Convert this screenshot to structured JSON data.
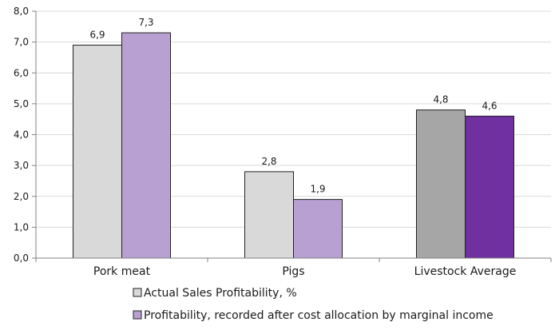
{
  "chart_data": {
    "type": "bar",
    "categories": [
      "Pork meat",
      "Pigs",
      "Livestock Average"
    ],
    "series": [
      {
        "name": "Actual Sales Profitability, %",
        "values": [
          6.9,
          2.8,
          4.8
        ],
        "labels": [
          "6,9",
          "2,8",
          "4,8"
        ],
        "color": "#d9d9d9",
        "highlight_color": "#a6a6a6"
      },
      {
        "name": "Profitability, recorded after cost allocation by marginal income",
        "values": [
          7.3,
          1.9,
          4.6
        ],
        "labels": [
          "7,3",
          "1,9",
          "4,6"
        ],
        "color": "#b9a0d2",
        "highlight_color": "#7030a0"
      }
    ],
    "highlighted_category": "Livestock Average",
    "ylim": [
      0,
      8
    ],
    "y_ticks": [
      "0,0",
      "1,0",
      "2,0",
      "3,0",
      "4,0",
      "5,0",
      "6,0",
      "7,0",
      "8,0"
    ],
    "grid": true,
    "legend_position": "bottom",
    "title": "",
    "xlabel": "",
    "ylabel": ""
  }
}
